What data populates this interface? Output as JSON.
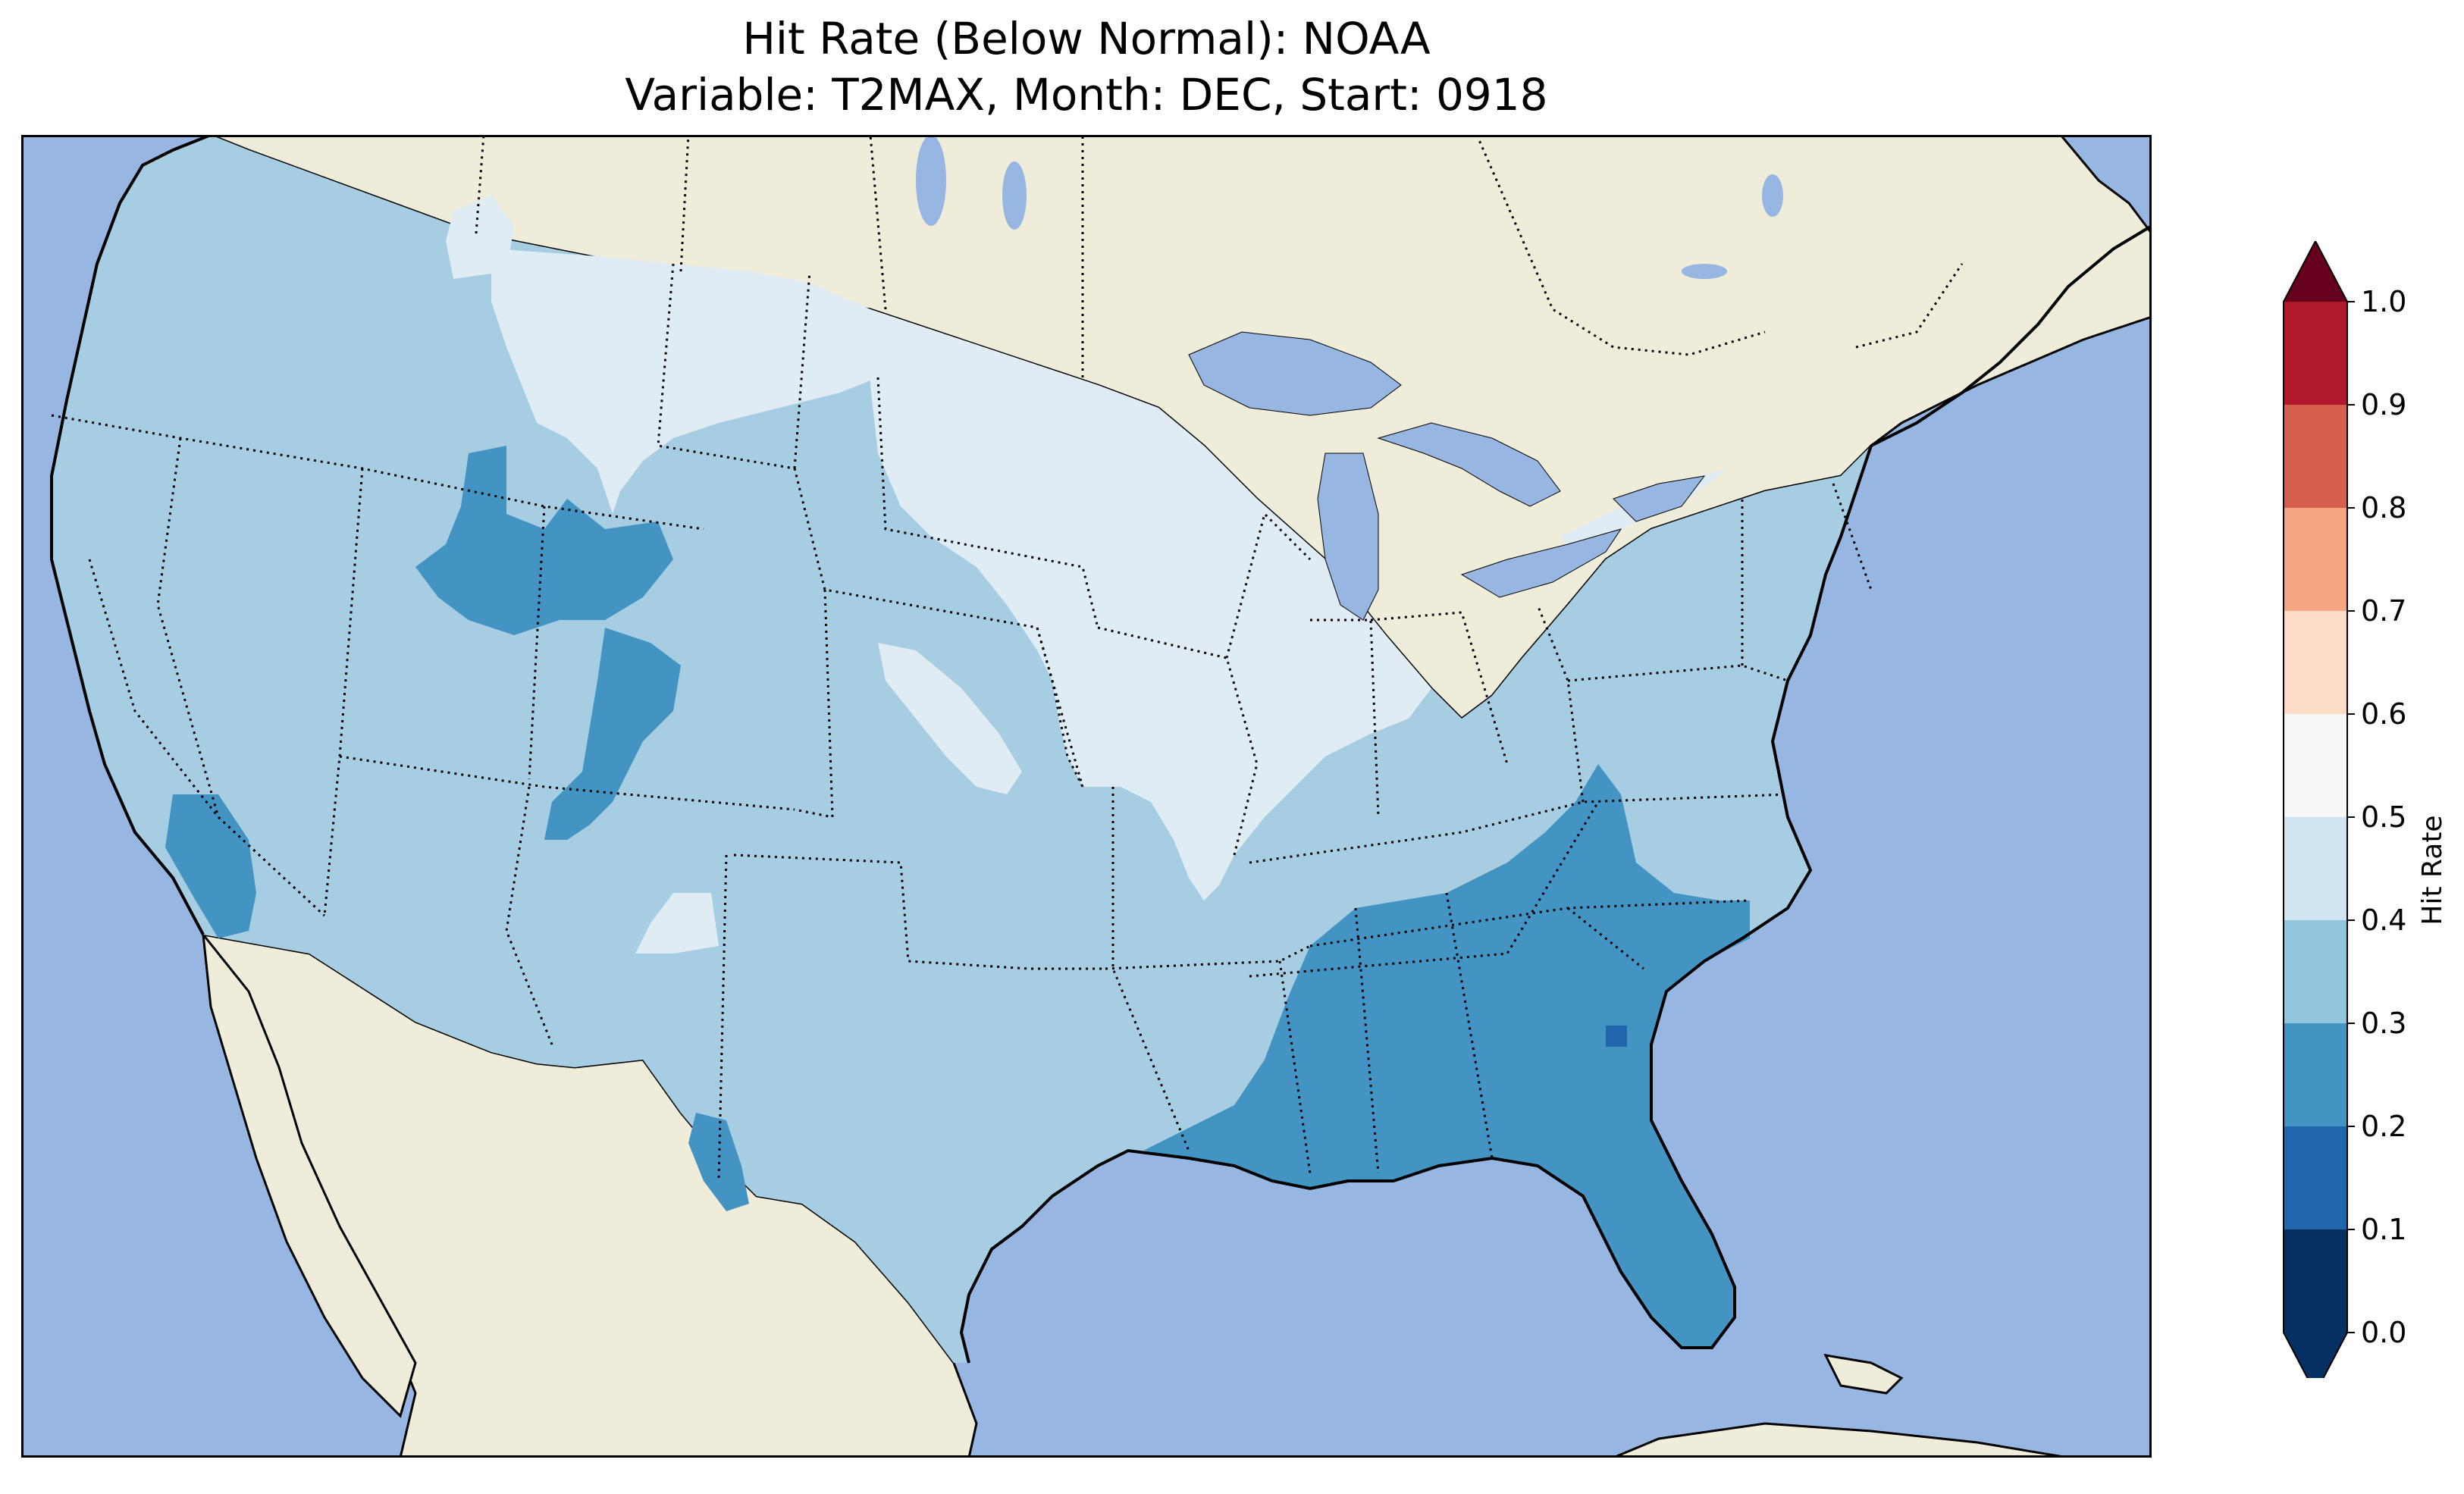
{
  "title": {
    "line1": "Hit Rate (Below Normal): NOAA",
    "line2": "Variable: T2MAX, Month: DEC, Start: 0918"
  },
  "colorbar": {
    "label": "Hit Rate",
    "ticks": [
      "0.0",
      "0.1",
      "0.2",
      "0.3",
      "0.4",
      "0.5",
      "0.6",
      "0.7",
      "0.8",
      "0.9",
      "1.0"
    ],
    "colors": [
      "#053061",
      "#2166ac",
      "#4393c3",
      "#92c5de",
      "#d1e5f0",
      "#f7f7f7",
      "#fddbc7",
      "#f4a582",
      "#d6604d",
      "#b2182b"
    ],
    "extend_under_color": "#053061",
    "extend_over_color": "#67001f"
  },
  "map": {
    "ocean_color": "#97b6e1",
    "land_color": "#efedda",
    "bin_colors": {
      "0.1-0.2": "#2166ac",
      "0.2-0.3": "#4393c3",
      "0.3-0.4": "#a6cde2",
      "0.4-0.5": "#e0ecf3"
    }
  }
}
